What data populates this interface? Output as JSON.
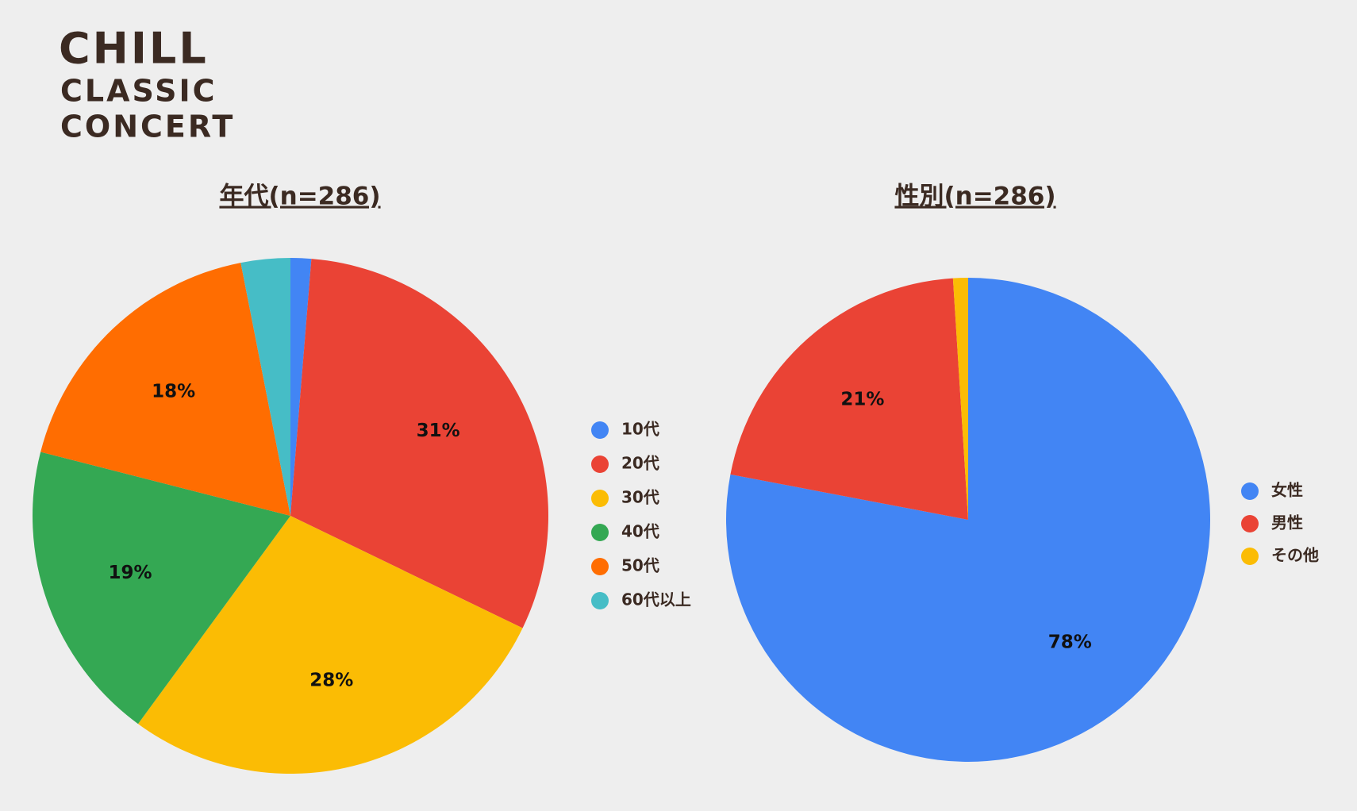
{
  "header": {
    "logo": [
      "CHILL",
      "CLASSIC",
      "CONCERT"
    ]
  },
  "chart_data": [
    {
      "type": "pie",
      "title": "年代(n=286)",
      "categories": [
        "10代",
        "20代",
        "30代",
        "40代",
        "50代",
        "60代以上"
      ],
      "values": [
        1.3,
        31,
        28,
        19,
        18,
        3.1
      ],
      "value_labels": [
        null,
        "31%",
        "28%",
        "19%",
        "18%",
        null
      ],
      "colors": [
        "#4285f4",
        "#ea4335",
        "#fbbc04",
        "#34a853",
        "#ff6d01",
        "#46bdc6"
      ],
      "legend": "right"
    },
    {
      "type": "pie",
      "title": "性別(n=286)",
      "categories": [
        "女性",
        "男性",
        "その他"
      ],
      "values": [
        78,
        21,
        1
      ],
      "value_labels": [
        "78%",
        "21%",
        null
      ],
      "colors": [
        "#4285f4",
        "#ea4335",
        "#fbbc04"
      ],
      "legend": "right"
    }
  ]
}
